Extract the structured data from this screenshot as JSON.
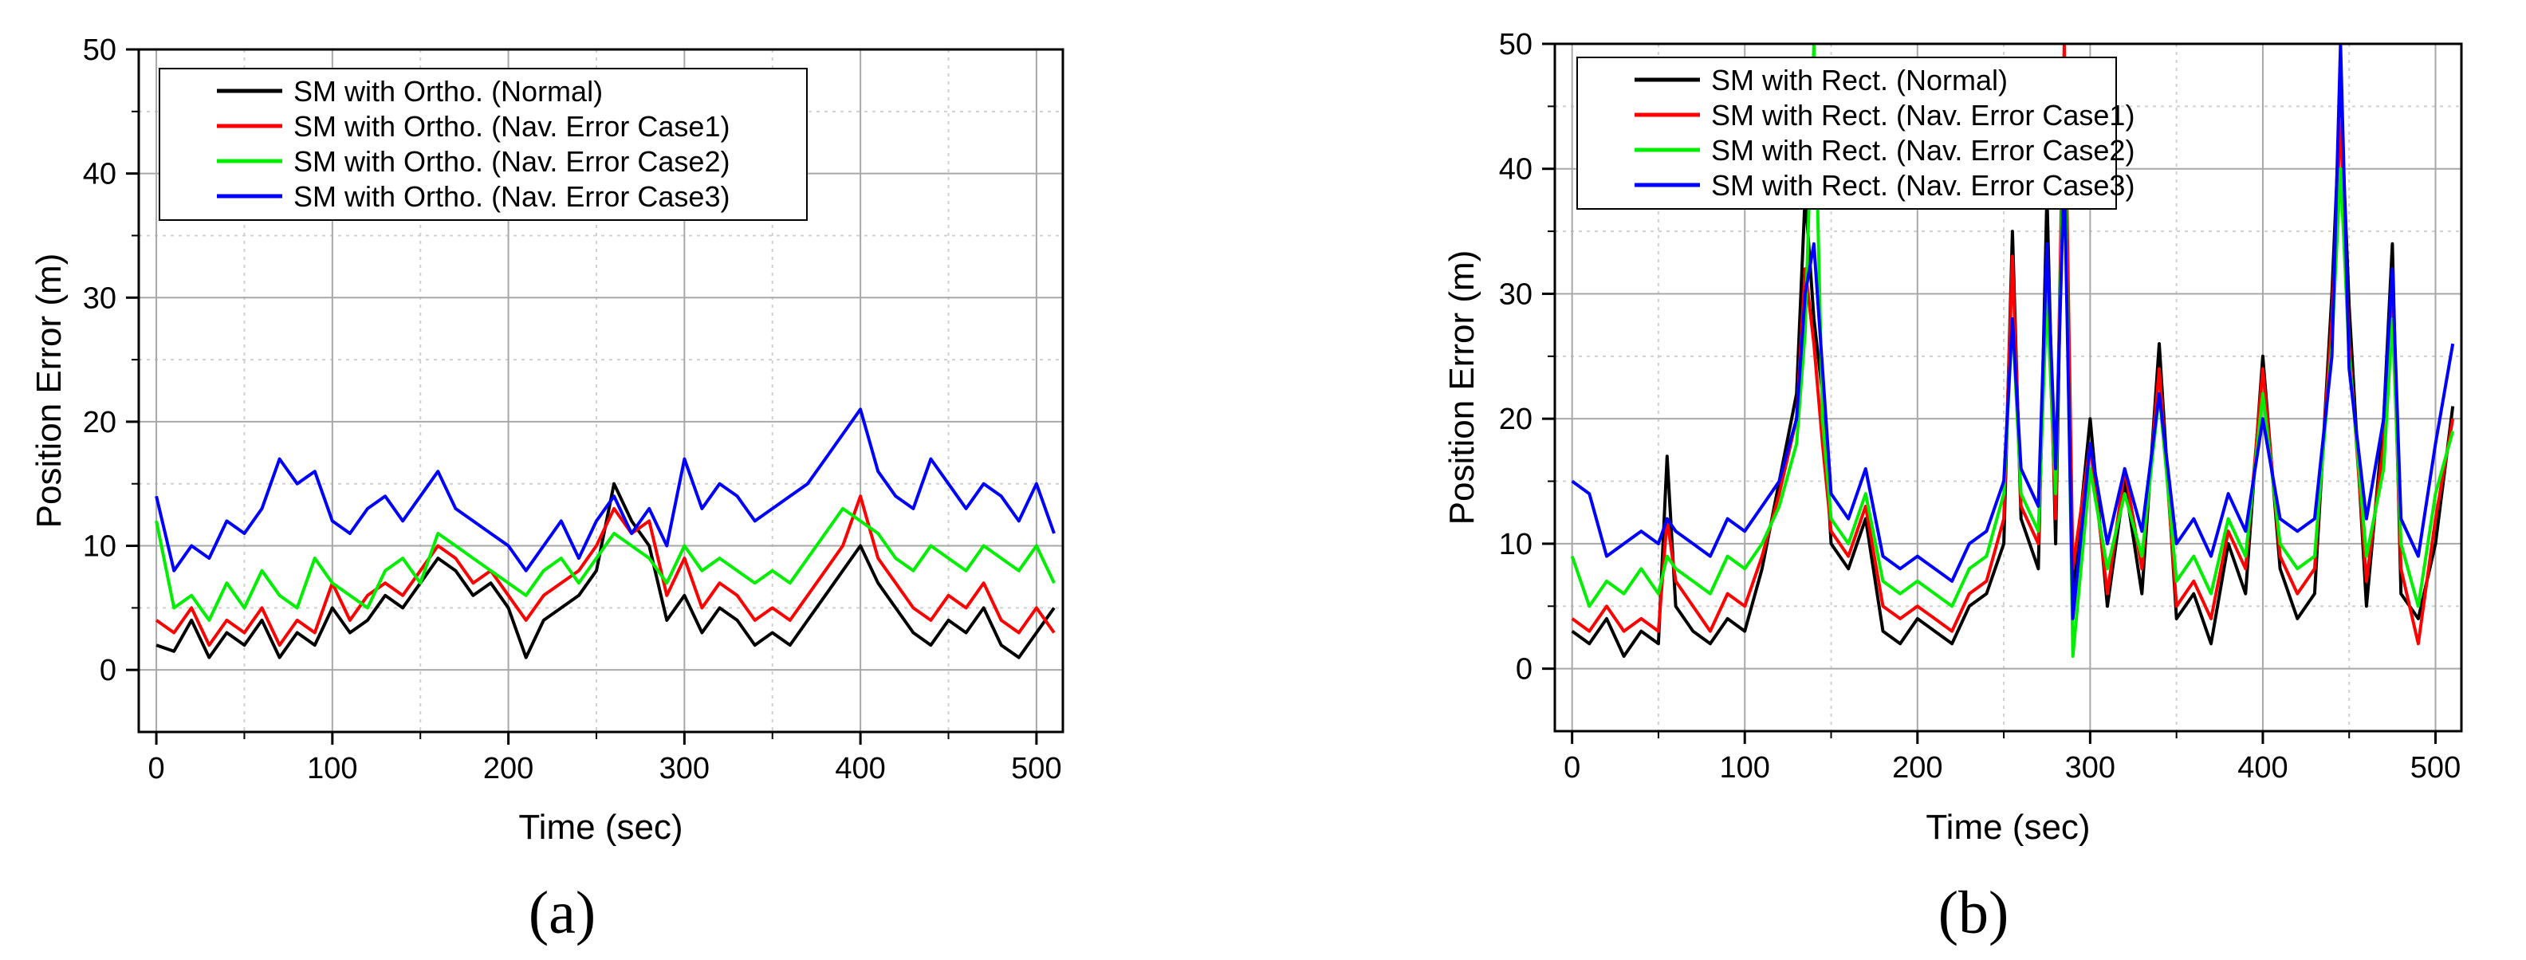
{
  "chart_data": [
    {
      "type": "line",
      "panel_label": "(a)",
      "xlabel": "Time (sec)",
      "ylabel": "Position Error (m)",
      "xlim": [
        -10,
        515
      ],
      "ylim": [
        -5,
        50
      ],
      "xticks": [
        0,
        100,
        200,
        300,
        400,
        500
      ],
      "yticks": [
        0,
        10,
        20,
        30,
        40,
        50
      ],
      "grid": true,
      "legend_position": "top-left",
      "series": [
        {
          "name": "SM with Ortho. (Normal)",
          "color": "#000000",
          "x": [
            0,
            10,
            20,
            30,
            40,
            50,
            60,
            70,
            80,
            90,
            100,
            110,
            120,
            130,
            140,
            150,
            160,
            170,
            180,
            190,
            200,
            210,
            220,
            230,
            240,
            250,
            260,
            270,
            280,
            290,
            300,
            310,
            320,
            330,
            340,
            350,
            360,
            370,
            380,
            390,
            400,
            410,
            420,
            430,
            440,
            450,
            460,
            470,
            480,
            490,
            500,
            510
          ],
          "y": [
            2,
            1.5,
            4,
            1,
            3,
            2,
            4,
            1,
            3,
            2,
            5,
            3,
            4,
            6,
            5,
            7,
            9,
            8,
            6,
            7,
            5,
            1,
            4,
            5,
            6,
            8,
            15,
            12,
            10,
            4,
            6,
            3,
            5,
            4,
            2,
            3,
            2,
            4,
            6,
            8,
            10,
            7,
            5,
            3,
            2,
            4,
            3,
            5,
            2,
            1,
            3,
            5
          ]
        },
        {
          "name": "SM with Ortho. (Nav. Error Case1)",
          "color": "#ff0000",
          "x": [
            0,
            10,
            20,
            30,
            40,
            50,
            60,
            70,
            80,
            90,
            100,
            110,
            120,
            130,
            140,
            150,
            160,
            170,
            180,
            190,
            200,
            210,
            220,
            230,
            240,
            250,
            260,
            270,
            280,
            290,
            300,
            310,
            320,
            330,
            340,
            350,
            360,
            370,
            380,
            390,
            400,
            410,
            420,
            430,
            440,
            450,
            460,
            470,
            480,
            490,
            500,
            510
          ],
          "y": [
            4,
            3,
            5,
            2,
            4,
            3,
            5,
            2,
            4,
            3,
            7,
            4,
            6,
            7,
            6,
            8,
            10,
            9,
            7,
            8,
            6,
            4,
            6,
            7,
            8,
            10,
            13,
            11,
            12,
            6,
            9,
            5,
            7,
            6,
            4,
            5,
            4,
            6,
            8,
            10,
            14,
            9,
            7,
            5,
            4,
            6,
            5,
            7,
            4,
            3,
            5,
            3
          ]
        },
        {
          "name": "SM with Ortho. (Nav. Error Case2)",
          "color": "#00ee00",
          "x": [
            0,
            10,
            20,
            30,
            40,
            50,
            60,
            70,
            80,
            90,
            100,
            110,
            120,
            130,
            140,
            150,
            160,
            170,
            180,
            190,
            200,
            210,
            220,
            230,
            240,
            250,
            260,
            270,
            280,
            290,
            300,
            310,
            320,
            330,
            340,
            350,
            360,
            370,
            380,
            390,
            400,
            410,
            420,
            430,
            440,
            450,
            460,
            470,
            480,
            490,
            500,
            510
          ],
          "y": [
            12,
            5,
            6,
            4,
            7,
            5,
            8,
            6,
            5,
            9,
            7,
            6,
            5,
            8,
            9,
            7,
            11,
            10,
            9,
            8,
            7,
            6,
            8,
            9,
            7,
            9,
            11,
            10,
            9,
            7,
            10,
            8,
            9,
            8,
            7,
            8,
            7,
            9,
            11,
            13,
            12,
            11,
            9,
            8,
            10,
            9,
            8,
            10,
            9,
            8,
            10,
            7
          ]
        },
        {
          "name": "SM with Ortho. (Nav. Error Case3)",
          "color": "#0000ff",
          "x": [
            0,
            10,
            20,
            30,
            40,
            50,
            60,
            70,
            80,
            90,
            100,
            110,
            120,
            130,
            140,
            150,
            160,
            170,
            180,
            190,
            200,
            210,
            220,
            230,
            240,
            250,
            260,
            270,
            280,
            290,
            300,
            310,
            320,
            330,
            340,
            350,
            360,
            370,
            380,
            390,
            400,
            410,
            420,
            430,
            440,
            450,
            460,
            470,
            480,
            490,
            500,
            510
          ],
          "y": [
            14,
            8,
            10,
            9,
            12,
            11,
            13,
            17,
            15,
            16,
            12,
            11,
            13,
            14,
            12,
            14,
            16,
            13,
            12,
            11,
            10,
            8,
            10,
            12,
            9,
            12,
            14,
            11,
            13,
            10,
            17,
            13,
            15,
            14,
            12,
            13,
            14,
            15,
            17,
            19,
            21,
            16,
            14,
            13,
            17,
            15,
            13,
            15,
            14,
            12,
            15,
            11
          ]
        }
      ]
    },
    {
      "type": "line",
      "panel_label": "(b)",
      "xlabel": "Time (sec)",
      "ylabel": "Position Error (m)",
      "xlim": [
        -10,
        515
      ],
      "ylim": [
        -5,
        50
      ],
      "xticks": [
        0,
        100,
        200,
        300,
        400,
        500
      ],
      "yticks": [
        0,
        10,
        20,
        30,
        40,
        50
      ],
      "grid": true,
      "legend_position": "top-left",
      "series": [
        {
          "name": "SM with Rect. (Normal)",
          "color": "#000000",
          "x": [
            0,
            10,
            20,
            30,
            40,
            50,
            55,
            60,
            70,
            80,
            90,
            100,
            110,
            120,
            130,
            135,
            140,
            145,
            150,
            160,
            170,
            180,
            190,
            200,
            210,
            220,
            230,
            240,
            250,
            255,
            260,
            270,
            275,
            280,
            285,
            290,
            300,
            310,
            320,
            330,
            340,
            350,
            360,
            370,
            380,
            390,
            400,
            410,
            420,
            430,
            440,
            445,
            450,
            460,
            470,
            475,
            480,
            490,
            500,
            510
          ],
          "y": [
            3,
            2,
            4,
            1,
            3,
            2,
            17,
            5,
            3,
            2,
            4,
            3,
            8,
            15,
            22,
            38,
            28,
            22,
            10,
            8,
            12,
            3,
            2,
            4,
            3,
            2,
            5,
            6,
            10,
            35,
            12,
            8,
            38,
            10,
            48,
            6,
            20,
            5,
            15,
            6,
            26,
            4,
            6,
            2,
            10,
            6,
            25,
            8,
            4,
            6,
            30,
            46,
            29,
            5,
            20,
            34,
            6,
            4,
            10,
            21
          ]
        },
        {
          "name": "SM with Rect. (Nav. Error Case1)",
          "color": "#ff0000",
          "x": [
            0,
            10,
            20,
            30,
            40,
            50,
            55,
            60,
            70,
            80,
            90,
            100,
            110,
            120,
            130,
            135,
            140,
            145,
            150,
            160,
            170,
            180,
            190,
            200,
            210,
            220,
            230,
            240,
            250,
            255,
            260,
            270,
            275,
            280,
            285,
            290,
            300,
            310,
            320,
            330,
            340,
            350,
            360,
            370,
            380,
            390,
            400,
            410,
            420,
            430,
            440,
            445,
            450,
            460,
            470,
            475,
            480,
            490,
            500,
            510
          ],
          "y": [
            4,
            3,
            5,
            3,
            4,
            3,
            12,
            7,
            5,
            3,
            6,
            5,
            9,
            14,
            20,
            32,
            26,
            18,
            11,
            9,
            13,
            5,
            4,
            5,
            4,
            3,
            6,
            7,
            12,
            33,
            13,
            10,
            32,
            12,
            50,
            8,
            18,
            6,
            16,
            8,
            24,
            5,
            7,
            4,
            11,
            8,
            24,
            9,
            6,
            8,
            28,
            44,
            26,
            7,
            18,
            30,
            8,
            2,
            12,
            20
          ]
        },
        {
          "name": "SM with Rect. (Nav. Error Case2)",
          "color": "#00ee00",
          "x": [
            0,
            10,
            20,
            30,
            40,
            50,
            55,
            60,
            70,
            80,
            90,
            100,
            110,
            120,
            130,
            135,
            140,
            145,
            150,
            160,
            170,
            180,
            190,
            200,
            210,
            220,
            230,
            240,
            250,
            255,
            260,
            270,
            275,
            280,
            285,
            290,
            300,
            310,
            320,
            330,
            340,
            350,
            360,
            370,
            380,
            390,
            400,
            410,
            420,
            430,
            440,
            445,
            450,
            460,
            470,
            475,
            480,
            490,
            500,
            510
          ],
          "y": [
            9,
            5,
            7,
            6,
            8,
            6,
            9,
            8,
            7,
            6,
            9,
            8,
            10,
            13,
            18,
            27,
            50,
            20,
            12,
            10,
            14,
            7,
            6,
            7,
            6,
            5,
            8,
            9,
            14,
            28,
            14,
            11,
            30,
            14,
            44,
            1,
            16,
            8,
            14,
            9,
            22,
            7,
            9,
            6,
            12,
            9,
            22,
            10,
            8,
            9,
            26,
            40,
            25,
            9,
            16,
            28,
            10,
            5,
            14,
            19
          ]
        },
        {
          "name": "SM with Rect. (Nav. Error Case3)",
          "color": "#0000ff",
          "x": [
            0,
            10,
            20,
            30,
            40,
            50,
            55,
            60,
            70,
            80,
            90,
            100,
            110,
            120,
            130,
            135,
            140,
            145,
            150,
            160,
            170,
            180,
            190,
            200,
            210,
            220,
            230,
            240,
            250,
            255,
            260,
            270,
            275,
            280,
            285,
            290,
            300,
            310,
            320,
            330,
            340,
            350,
            360,
            370,
            380,
            390,
            400,
            410,
            420,
            430,
            440,
            445,
            450,
            460,
            470,
            475,
            480,
            490,
            500,
            510
          ],
          "y": [
            15,
            14,
            9,
            10,
            11,
            10,
            12,
            11,
            10,
            9,
            12,
            11,
            13,
            15,
            20,
            30,
            34,
            24,
            14,
            12,
            16,
            9,
            8,
            9,
            8,
            7,
            10,
            11,
            15,
            28,
            16,
            13,
            34,
            16,
            40,
            4,
            18,
            10,
            16,
            11,
            22,
            10,
            12,
            9,
            14,
            11,
            20,
            12,
            11,
            12,
            25,
            50,
            24,
            12,
            20,
            32,
            12,
            9,
            18,
            26
          ]
        }
      ]
    }
  ]
}
